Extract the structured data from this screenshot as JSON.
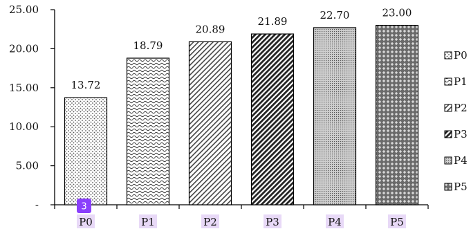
{
  "chart_data": {
    "type": "bar",
    "categories": [
      "P0",
      "P1",
      "P2",
      "P3",
      "P4",
      "P5"
    ],
    "values": [
      13.72,
      18.79,
      20.89,
      21.89,
      22.7,
      23.0
    ],
    "data_labels": [
      "13.72",
      "18.79",
      "20.89",
      "21.89",
      "22.70",
      "23.00"
    ],
    "ylim": [
      0,
      25
    ],
    "yticks": [
      0,
      5,
      10,
      15,
      20,
      25
    ],
    "ytick_labels": [
      "-",
      "5.00",
      "10.00",
      "15.00",
      "20.00",
      "25.00"
    ],
    "legend": {
      "position": "right",
      "entries": [
        "P0",
        "P1",
        "P2",
        "P3",
        "P4",
        "P5"
      ]
    },
    "patterns": [
      "dots",
      "waves",
      "diag-light",
      "diag-dark",
      "fine-dots",
      "diamond"
    ],
    "highlight_color": "#e8d9f7",
    "grid": false
  },
  "badge": {
    "text": "3",
    "color": "#8a3ffc"
  }
}
